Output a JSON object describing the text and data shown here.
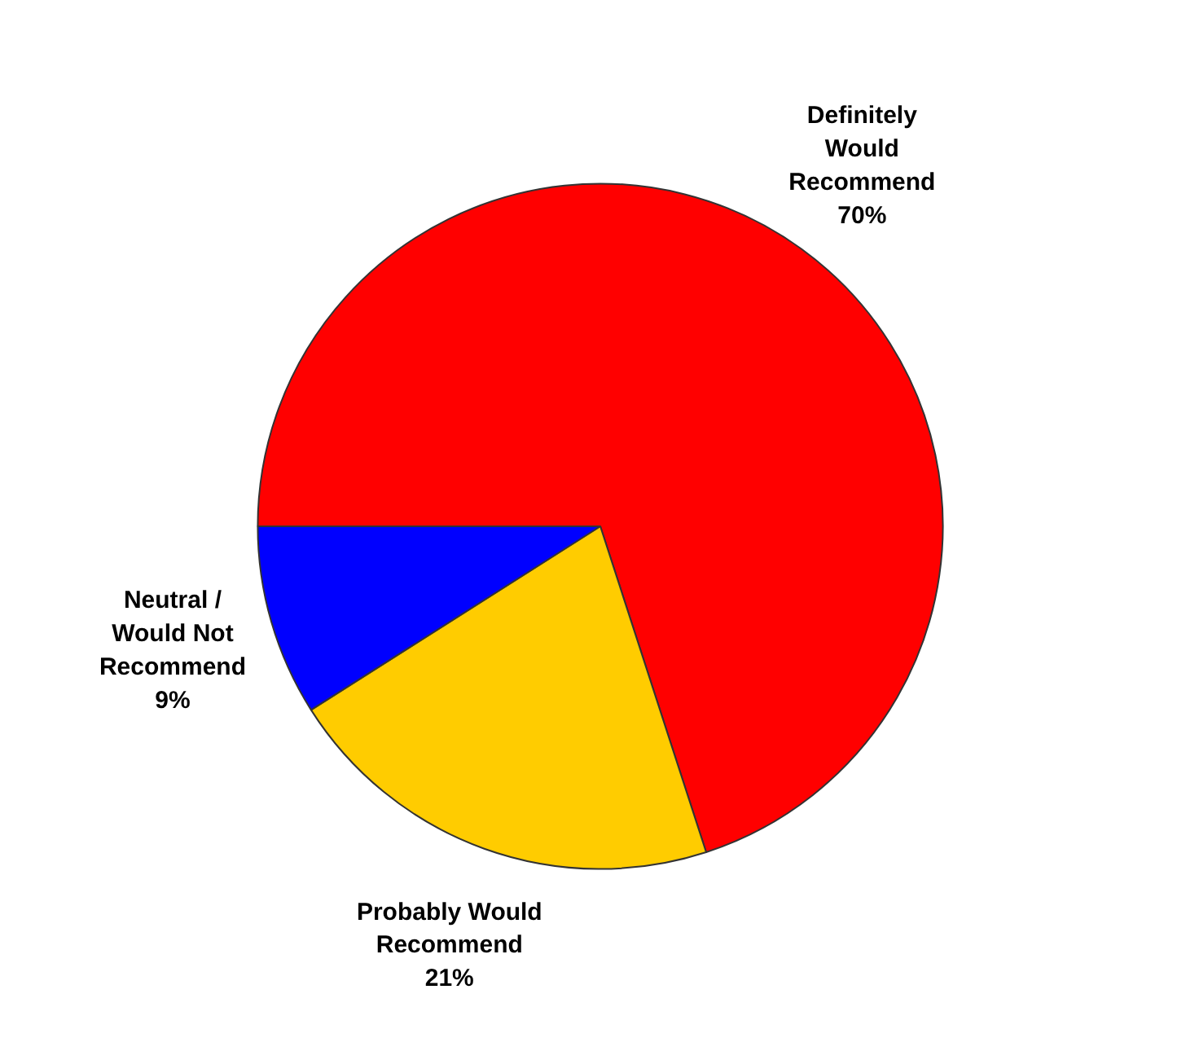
{
  "chart_data": {
    "type": "pie",
    "categories": [
      "Definitely Would Recommend",
      "Probably Would Recommend",
      "Neutral / Would Not Recommend"
    ],
    "values": [
      70,
      21,
      9
    ],
    "colors": [
      "#ff0000",
      "#ffcc00",
      "#0000ff"
    ],
    "value_labels": [
      "70%",
      "21%",
      "9%"
    ]
  }
}
